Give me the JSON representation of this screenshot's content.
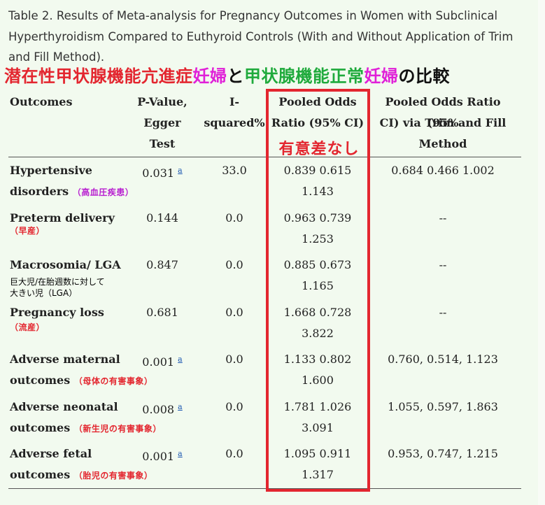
{
  "caption": "Table 2. Results of Meta-analysis for Pregnancy Outcomes in Women with Subclinical Hyperthyroidism Compared to Euthyroid Controls (With and Without Application of Trim and Fill Method).",
  "jp_title": {
    "part1": "潜在性甲状腺機能亢進症",
    "part2": "妊婦",
    "part3": "と",
    "part4": "甲状腺機能正常",
    "part5": "妊婦",
    "part6": "の比較"
  },
  "colors": {
    "part1": "#e3262f",
    "part2": "#e020d8",
    "part3": "#111111",
    "part4": "#1faa3c",
    "part5": "#e020d8",
    "part6": "#111111",
    "note": "#e3262f",
    "note_magenta": "#b81fd0",
    "highlight_box": "#e3262f"
  },
  "headers": {
    "outcomes": "Outcomes",
    "pvalue_1": "P-Value,",
    "pvalue_2": "Egger Test",
    "isq_1": "I-",
    "isq_2": "squared%",
    "por_1": "Pooled Odds",
    "por_2": "Ratio (95% CI)",
    "tf_1": "Pooled Odds Ratio (95%",
    "tf_2": "CI) via Trim and Fill",
    "tf_3": "Method"
  },
  "no_significant_label": "有意差なし",
  "rows": [
    {
      "outcome_1": "Hypertensive",
      "outcome_2": "disorders",
      "jp": "（高血圧疾患）",
      "p": "0.031",
      "sup": "a",
      "i2": "33.0",
      "or_1": "0.839 0.615",
      "or_2": "1.143",
      "tf": "0.684 0.466 1.002"
    },
    {
      "outcome_1": "Preterm delivery",
      "jp": "（早産）",
      "p": "0.144",
      "i2": "0.0",
      "or_1": "0.963 0.739",
      "or_2": "1.253",
      "tf": "--"
    },
    {
      "outcome_1": "Macrosomia/ LGA",
      "jp_a": "巨大児/在胎週数に対して",
      "jp_b": "大きい児（LGA）",
      "p": "0.847",
      "i2": "0.0",
      "or_1": "0.885 0.673",
      "or_2": "1.165",
      "tf": "--"
    },
    {
      "outcome_1": "Pregnancy loss",
      "jp": "（流産）",
      "p": "0.681",
      "i2": "0.0",
      "or_1": "1.668 0.728",
      "or_2": "3.822",
      "tf": "--"
    },
    {
      "outcome_1": "Adverse maternal",
      "outcome_2": "outcomes",
      "jp": "（母体の有害事象）",
      "p": "0.001",
      "sup": "a",
      "i2": "0.0",
      "or_1": "1.133 0.802",
      "or_2": "1.600",
      "tf": "0.760, 0.514, 1.123"
    },
    {
      "outcome_1": "Adverse neonatal",
      "outcome_2": "outcomes",
      "jp": "（新生児の有害事象）",
      "p": "0.008",
      "sup": "a",
      "i2": "0.0",
      "or_1": "1.781 1.026",
      "or_2": "3.091",
      "tf": "1.055, 0.597, 1.863"
    },
    {
      "outcome_1": "Adverse fetal",
      "outcome_2": "outcomes",
      "jp": "（胎児の有害事象）",
      "p": "0.001",
      "sup": "a",
      "i2": "0.0",
      "or_1": "1.095 0.911",
      "or_2": "1.317",
      "tf": "0.953, 0.747, 1.215"
    }
  ]
}
